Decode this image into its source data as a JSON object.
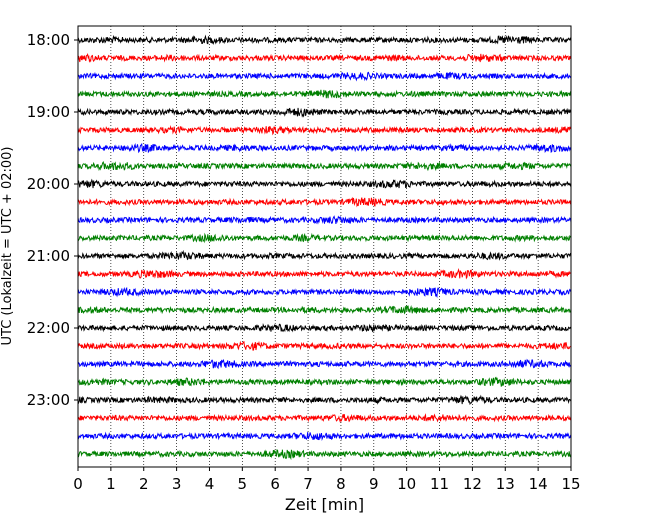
{
  "chart_data": {
    "type": "line",
    "title": "",
    "xlabel": "Zeit  [min]",
    "ylabel": "UTC (Lokalzeit = UTC + 02:00)",
    "xlim": [
      0,
      15
    ],
    "x_ticks": [
      "0",
      "1",
      "2",
      "3",
      "4",
      "5",
      "6",
      "7",
      "8",
      "9",
      "10",
      "11",
      "12",
      "13",
      "14",
      "15"
    ],
    "y_tick_labels": [
      "18:00",
      "19:00",
      "20:00",
      "21:00",
      "22:00",
      "23:00"
    ],
    "grid": "vertical dotted lines at each minute",
    "legend": "none",
    "row_interval_minutes": 15,
    "traces": [
      {
        "start": "18:00",
        "color": "#000000"
      },
      {
        "start": "18:15",
        "color": "#ff0000"
      },
      {
        "start": "18:30",
        "color": "#0000ff"
      },
      {
        "start": "18:45",
        "color": "#008000"
      },
      {
        "start": "19:00",
        "color": "#000000"
      },
      {
        "start": "19:15",
        "color": "#ff0000"
      },
      {
        "start": "19:30",
        "color": "#0000ff"
      },
      {
        "start": "19:45",
        "color": "#008000"
      },
      {
        "start": "20:00",
        "color": "#000000"
      },
      {
        "start": "20:15",
        "color": "#ff0000"
      },
      {
        "start": "20:30",
        "color": "#0000ff"
      },
      {
        "start": "20:45",
        "color": "#008000"
      },
      {
        "start": "21:00",
        "color": "#000000"
      },
      {
        "start": "21:15",
        "color": "#ff0000"
      },
      {
        "start": "21:30",
        "color": "#0000ff"
      },
      {
        "start": "21:45",
        "color": "#008000"
      },
      {
        "start": "22:00",
        "color": "#000000"
      },
      {
        "start": "22:15",
        "color": "#ff0000"
      },
      {
        "start": "22:30",
        "color": "#0000ff"
      },
      {
        "start": "22:45",
        "color": "#008000"
      },
      {
        "start": "23:00",
        "color": "#000000"
      },
      {
        "start": "23:15",
        "color": "#ff0000"
      },
      {
        "start": "23:30",
        "color": "#0000ff"
      },
      {
        "start": "23:45",
        "color": "#008000"
      }
    ]
  }
}
